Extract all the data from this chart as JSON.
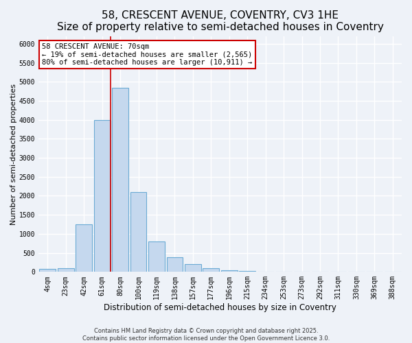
{
  "title1": "58, CRESCENT AVENUE, COVENTRY, CV3 1HE",
  "title2": "Size of property relative to semi-detached houses in Coventry",
  "xlabel": "Distribution of semi-detached houses by size in Coventry",
  "ylabel": "Number of semi-detached properties",
  "bar_labels": [
    "4sqm",
    "23sqm",
    "42sqm",
    "61sqm",
    "80sqm",
    "100sqm",
    "119sqm",
    "138sqm",
    "157sqm",
    "177sqm",
    "196sqm",
    "215sqm",
    "234sqm",
    "253sqm",
    "273sqm",
    "292sqm",
    "311sqm",
    "330sqm",
    "369sqm",
    "388sqm"
  ],
  "bar_values": [
    75,
    100,
    1250,
    4000,
    4850,
    2100,
    800,
    380,
    200,
    100,
    50,
    30,
    10,
    5,
    0,
    0,
    0,
    0,
    0,
    0
  ],
  "bar_color": "#c5d8ee",
  "bar_edge_color": "#6aaad4",
  "bar_edge_width": 0.8,
  "vline_color": "#cc0000",
  "annotation_text": "58 CRESCENT AVENUE: 70sqm\n← 19% of semi-detached houses are smaller (2,565)\n80% of semi-detached houses are larger (10,911) →",
  "annotation_box_color": "white",
  "annotation_box_edge_color": "#cc0000",
  "ylim": [
    0,
    6200
  ],
  "yticks": [
    0,
    500,
    1000,
    1500,
    2000,
    2500,
    3000,
    3500,
    4000,
    4500,
    5000,
    5500,
    6000
  ],
  "bg_color": "#eef2f8",
  "footer1": "Contains HM Land Registry data © Crown copyright and database right 2025.",
  "footer2": "Contains public sector information licensed under the Open Government Licence 3.0.",
  "grid_color": "white",
  "title1_fontsize": 11,
  "title2_fontsize": 9,
  "xlabel_fontsize": 8.5,
  "ylabel_fontsize": 8,
  "tick_fontsize": 7,
  "footer_fontsize": 6,
  "vline_pos": 3.47
}
